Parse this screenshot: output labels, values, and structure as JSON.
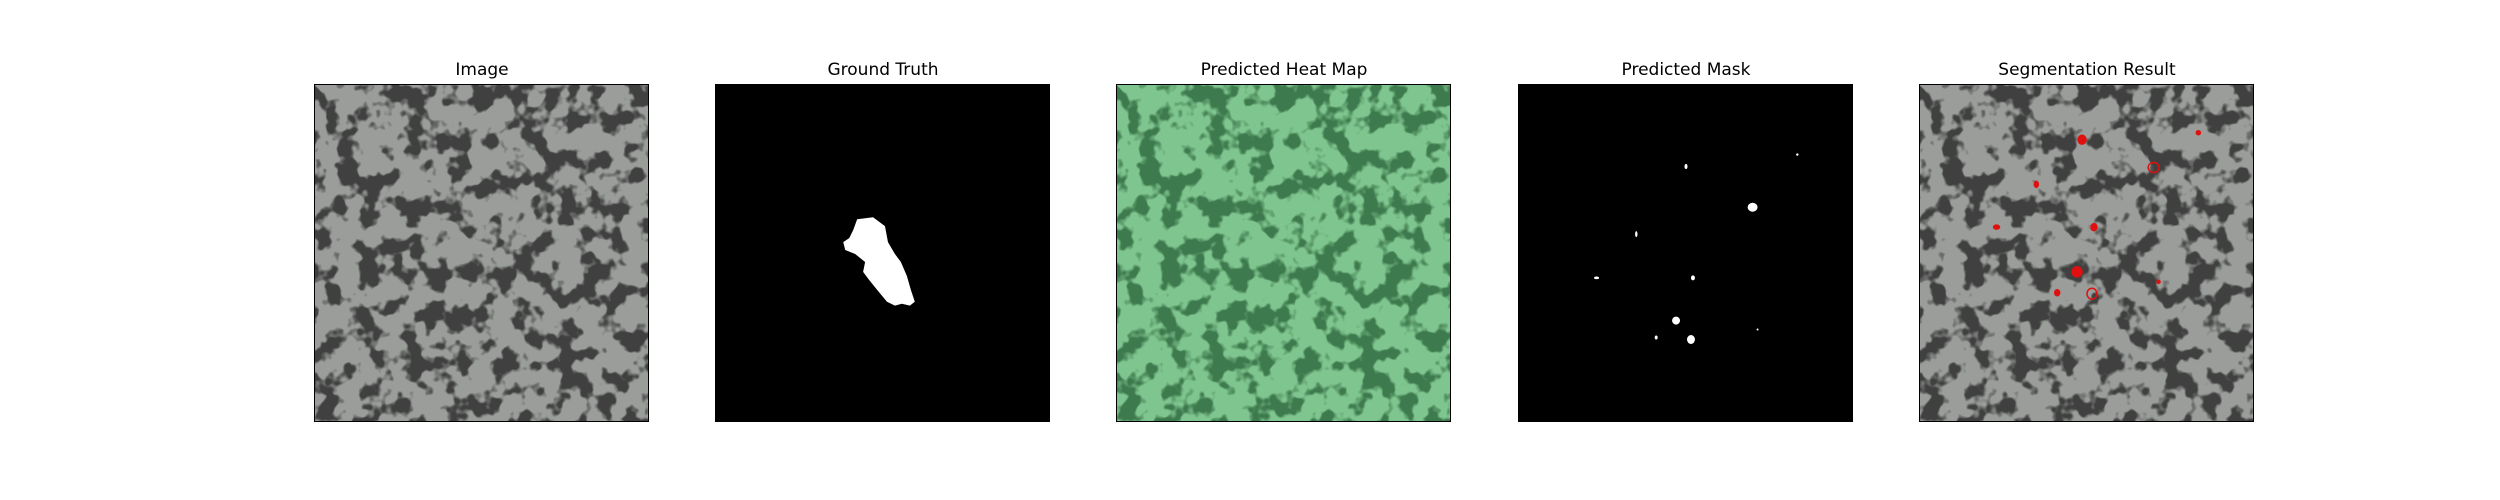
{
  "figure": {
    "panels": [
      {
        "title": "Image"
      },
      {
        "title": "Ground Truth"
      },
      {
        "title": "Predicted Heat Map"
      },
      {
        "title": "Predicted Mask"
      },
      {
        "title": "Segmentation Result"
      }
    ]
  },
  "colors": {
    "texture_bg": "#9a9d9a",
    "texture_blob": "#3f403f",
    "heat_bg": "#7fc58f",
    "heat_blob": "#3e7a4d",
    "mask_bg": "#000000",
    "mask_fg": "#ffffff",
    "overlay_outline": "#e01010"
  }
}
